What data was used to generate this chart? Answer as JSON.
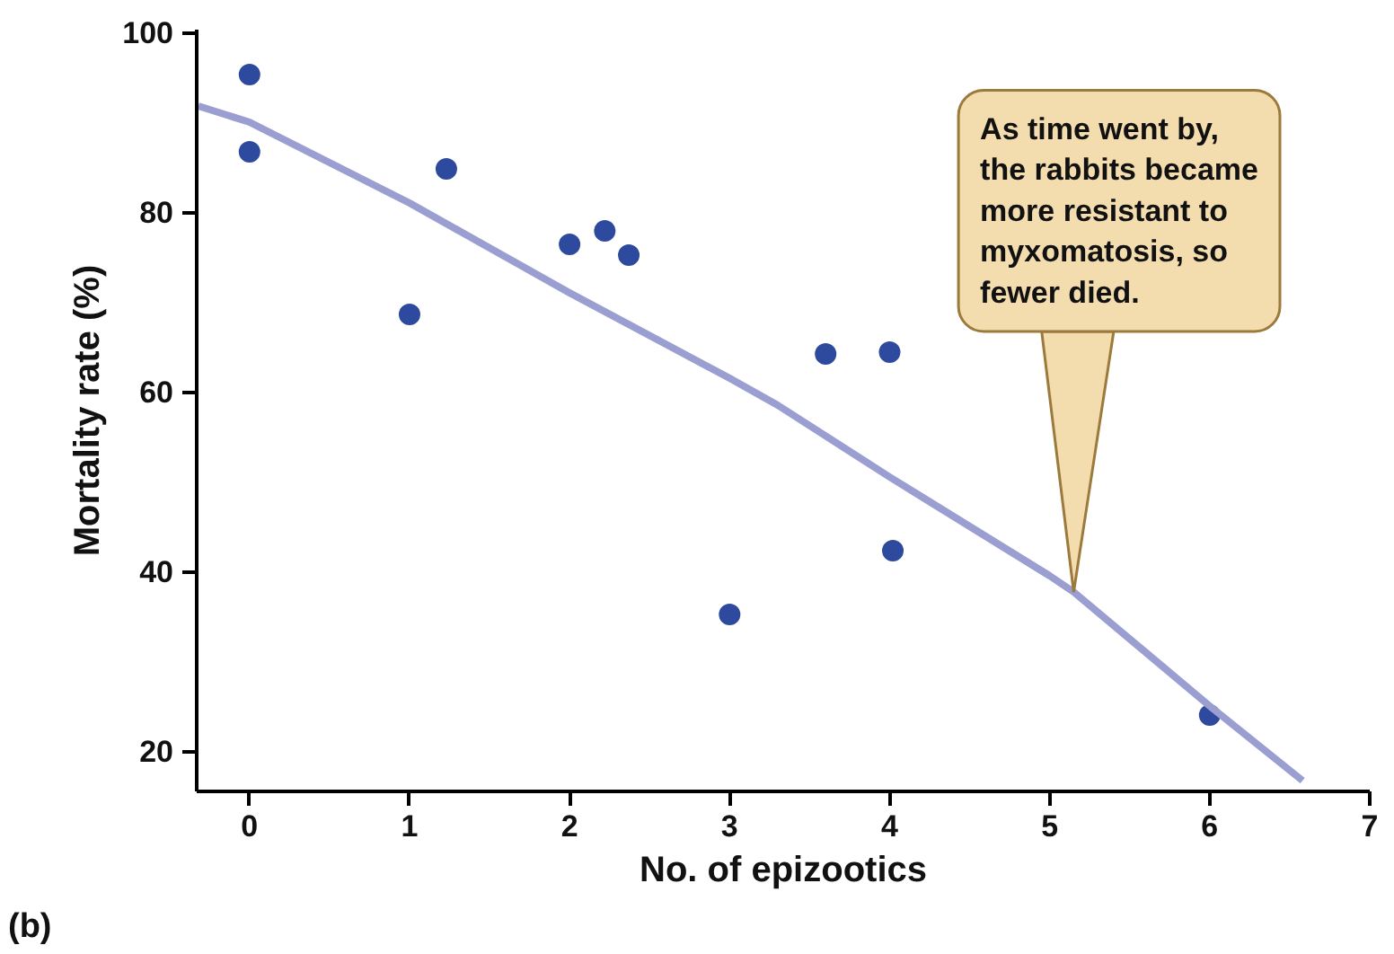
{
  "chart_data": {
    "type": "scatter",
    "xlabel": "No. of epizootics",
    "ylabel": "Mortality rate (%)",
    "xlim": [
      -0.33,
      7
    ],
    "ylim": [
      15.5,
      100.3
    ],
    "xticks": [
      0,
      1,
      2,
      3,
      4,
      5,
      6,
      7
    ],
    "yticks": [
      20,
      40,
      60,
      80,
      100
    ],
    "grid": false,
    "marker": "circle",
    "series": [
      {
        "color": "#2e4a9e",
        "x": [
          0,
          0,
          1,
          1.23,
          2,
          2.22,
          2.37,
          3,
          3.6,
          4,
          4.02,
          6
        ],
        "values": [
          95.3,
          86.7,
          68.6,
          84.8,
          76.4,
          77.9,
          75.2,
          35.2,
          64.2,
          64.4,
          42.3,
          24
        ]
      },
      {
        "type": "line",
        "color": "#9a9ed0",
        "marker": "none",
        "x": [
          -0.32,
          0,
          1,
          2,
          3,
          3.3,
          4,
          5,
          5.15,
          6,
          6.58
        ],
        "values": [
          91.8,
          90,
          81,
          71,
          61.5,
          58.5,
          50.5,
          39.5,
          37.7,
          25,
          16.7
        ]
      }
    ],
    "annotations": [
      {
        "text": "As time went by, the rabbits became more resistant to myxomatosis, so fewer died.",
        "x": 5.15,
        "y": 37.7
      },
      "(b)"
    ]
  }
}
